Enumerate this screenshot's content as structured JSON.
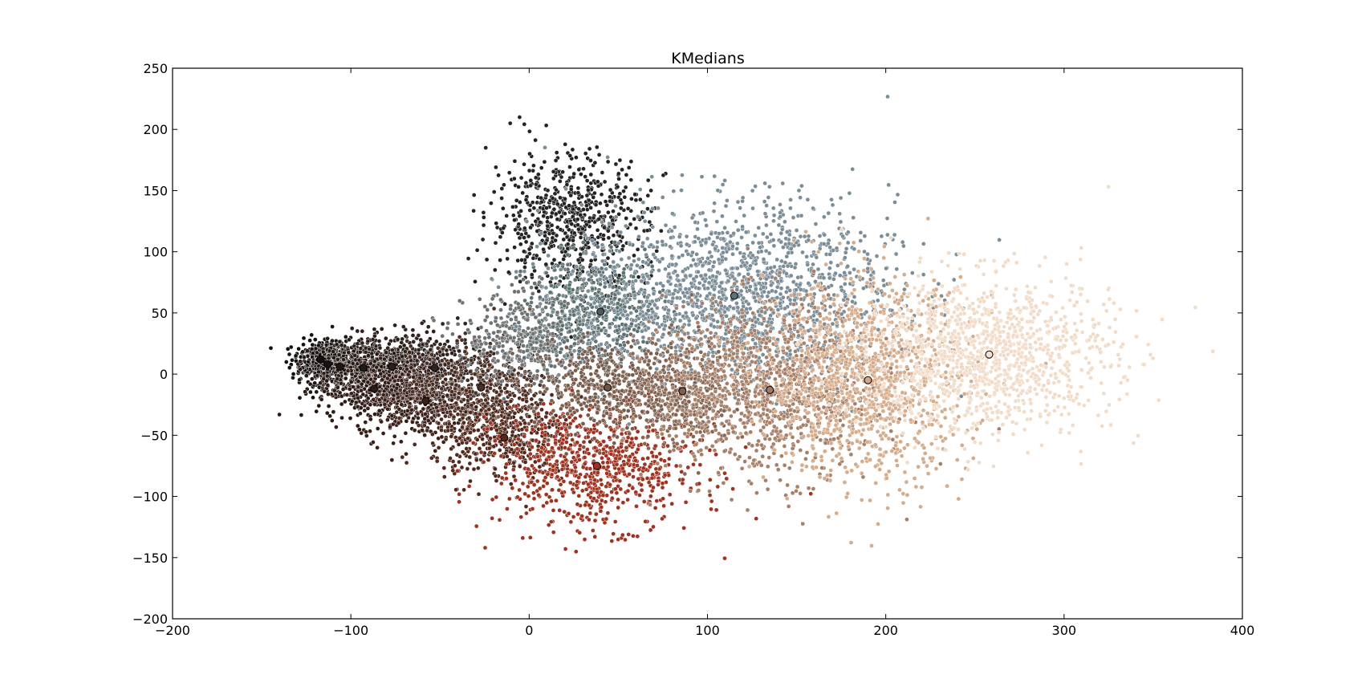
{
  "chart_data": {
    "type": "scatter",
    "title": "KMedians",
    "xlabel": "",
    "ylabel": "",
    "xlim": [
      -200,
      400
    ],
    "ylim": [
      -200,
      250
    ],
    "xticks": [
      -200,
      -100,
      0,
      100,
      200,
      300,
      400
    ],
    "yticks": [
      -200,
      -150,
      -100,
      -50,
      0,
      50,
      100,
      150,
      200,
      250
    ],
    "xtick_labels": [
      "−200",
      "−100",
      "0",
      "100",
      "200",
      "300",
      "400"
    ],
    "ytick_labels": [
      "−200",
      "−150",
      "−100",
      "−50",
      "0",
      "50",
      "100",
      "150",
      "200",
      "250"
    ],
    "grid": false,
    "legend": "none",
    "clusters": [
      {
        "color": "#111111",
        "center": [
          -117,
          12
        ],
        "spread": [
          8,
          8
        ]
      },
      {
        "color": "#1a1212",
        "center": [
          -113,
          8
        ],
        "spread": [
          8,
          8
        ]
      },
      {
        "color": "#1f1714",
        "center": [
          -106,
          6
        ],
        "spread": [
          10,
          10
        ]
      },
      {
        "color": "#231a17",
        "center": [
          -93,
          6
        ],
        "spread": [
          12,
          12
        ]
      },
      {
        "color": "#2a1f1b",
        "center": [
          -77,
          6
        ],
        "spread": [
          14,
          14
        ]
      },
      {
        "color": "#2e231f",
        "center": [
          -53,
          5
        ],
        "spread": [
          15,
          14
        ]
      },
      {
        "color": "#2c1a14",
        "center": [
          -87,
          -12
        ],
        "spread": [
          16,
          14
        ]
      },
      {
        "color": "#3a2018",
        "center": [
          -58,
          -22
        ],
        "spread": [
          18,
          16
        ]
      },
      {
        "color": "#4a2f25",
        "center": [
          -27,
          -11
        ],
        "spread": [
          20,
          18
        ]
      },
      {
        "color": "#54291c",
        "center": [
          -14,
          -52
        ],
        "spread": [
          20,
          18
        ]
      },
      {
        "color": "#a0321f",
        "center": [
          38,
          -75
        ],
        "spread": [
          28,
          25
        ]
      },
      {
        "color": "#232323",
        "center": [
          22,
          125
        ],
        "spread": [
          22,
          28
        ]
      },
      {
        "color": "#6e7272",
        "center": [
          0,
          30
        ],
        "spread": [
          18,
          18
        ]
      },
      {
        "color": "#5d7171",
        "center": [
          40,
          51
        ],
        "spread": [
          20,
          22
        ]
      },
      {
        "color": "#7b8e98",
        "center": [
          115,
          64
        ],
        "spread": [
          45,
          38
        ]
      },
      {
        "color": "#7a5c4b",
        "center": [
          44,
          -11
        ],
        "spread": [
          22,
          18
        ]
      },
      {
        "color": "#876754",
        "center": [
          86,
          -14
        ],
        "spread": [
          14,
          22
        ]
      },
      {
        "color": "#a88068",
        "center": [
          135,
          -13
        ],
        "spread": [
          30,
          35
        ]
      },
      {
        "color": "#d6ac8a",
        "center": [
          190,
          -5
        ],
        "spread": [
          28,
          40
        ]
      },
      {
        "color": "#f2dcc8",
        "center": [
          258,
          16
        ],
        "spread": [
          35,
          32
        ]
      }
    ],
    "centroids": [
      {
        "x": -117,
        "y": 12,
        "color": "#111111"
      },
      {
        "x": -113,
        "y": 8,
        "color": "#1a1212"
      },
      {
        "x": -106,
        "y": 6,
        "color": "#1f1714"
      },
      {
        "x": -93,
        "y": 5,
        "color": "#231a17"
      },
      {
        "x": -77,
        "y": 6,
        "color": "#2a1f1b"
      },
      {
        "x": -53,
        "y": 5,
        "color": "#2e231f"
      },
      {
        "x": -87,
        "y": -12,
        "color": "#2c1a14"
      },
      {
        "x": -58,
        "y": -22,
        "color": "#3a2018"
      },
      {
        "x": -27,
        "y": -11,
        "color": "#4a2f25"
      },
      {
        "x": -14,
        "y": -52,
        "color": "#54291c"
      },
      {
        "x": 38,
        "y": -75,
        "color": "#a0321f"
      },
      {
        "x": 40,
        "y": 51,
        "color": "#4a5c5c"
      },
      {
        "x": 115,
        "y": 64,
        "color": "#5f717b"
      },
      {
        "x": 44,
        "y": -11,
        "color": "#6e5444"
      },
      {
        "x": 86,
        "y": -14,
        "color": "#7e604e"
      },
      {
        "x": 135,
        "y": -13,
        "color": "#a07a62"
      },
      {
        "x": 190,
        "y": -5,
        "color": "#d1a887"
      },
      {
        "x": 258,
        "y": 16,
        "color": "#f4e0cf"
      }
    ]
  }
}
